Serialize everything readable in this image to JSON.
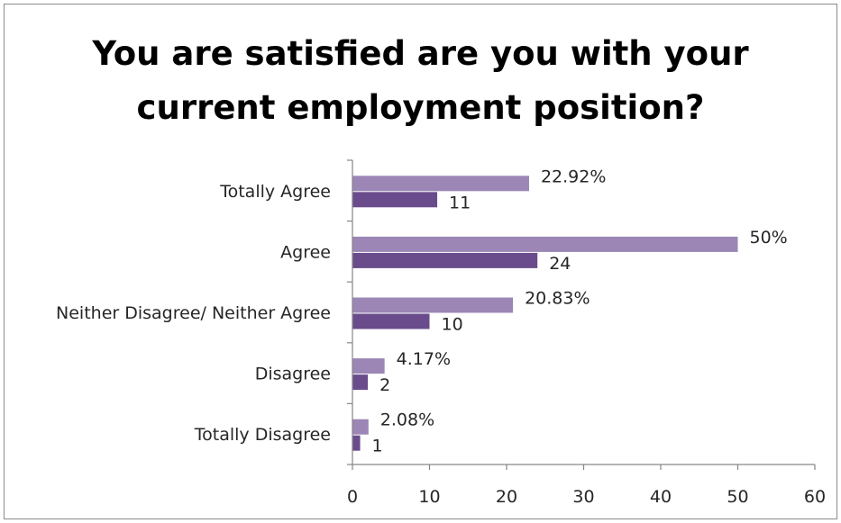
{
  "chart_data": {
    "type": "bar",
    "orientation": "horizontal",
    "title": "You are satisfied are you with your\ncurrent employment position?",
    "categories": [
      "Totally Agree",
      "Agree",
      "Neither Disagree/ Neither Agree",
      "Disagree",
      "Totally Disagree"
    ],
    "series": [
      {
        "values": [
          22.92,
          50,
          20.83,
          4.17,
          2.08
        ],
        "labels": [
          "22.92%",
          "50%",
          "20.83%",
          "4.17%",
          "2.08%"
        ],
        "color": "#9b86b5"
      },
      {
        "values": [
          11,
          24,
          10,
          2,
          1
        ],
        "labels": [
          "11",
          "24",
          "10",
          "2",
          "1"
        ],
        "color": "#6a4c8c"
      }
    ],
    "xlim": [
      0,
      60
    ],
    "xticks": [
      0,
      10,
      20,
      30,
      40,
      50,
      60
    ],
    "grid": false,
    "legend": "none"
  },
  "colors": {
    "frame_border": "#8c8c8c",
    "axis": "#868686",
    "text": "#262626"
  }
}
